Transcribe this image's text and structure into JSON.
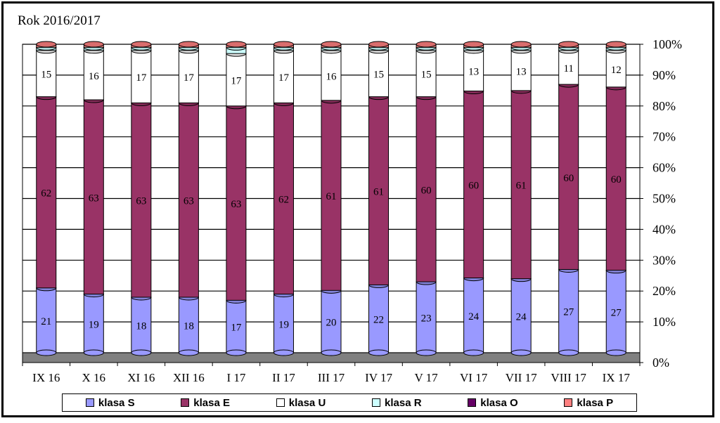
{
  "chart_data": {
    "type": "bar",
    "stacked": true,
    "percent": true,
    "title": "Rok 2016/2017",
    "categories": [
      "IX 16",
      "X 16",
      "XI 16",
      "XII 16",
      "I 17",
      "II 17",
      "III 17",
      "IV 17",
      "V 17",
      "VI 17",
      "VII 17",
      "VIII 17",
      "IX 17"
    ],
    "series": [
      {
        "name": "klasa S",
        "color": "#9999ff",
        "values": [
          21,
          19,
          18,
          18,
          17,
          19,
          20,
          22,
          23,
          24,
          24,
          27,
          27
        ]
      },
      {
        "name": "klasa E",
        "color": "#993366",
        "values": [
          62,
          63,
          63,
          63,
          63,
          62,
          61,
          61,
          60,
          60,
          61,
          60,
          60
        ]
      },
      {
        "name": "klasa U",
        "color": "#ffffff",
        "values": [
          15,
          16,
          17,
          17,
          17,
          17,
          16,
          15,
          15,
          13,
          13,
          11,
          12
        ]
      },
      {
        "name": "klasa R",
        "color": "#ccffff",
        "values": [
          1,
          1,
          1,
          1,
          2,
          1,
          1,
          1,
          1,
          1,
          1,
          1,
          1
        ]
      },
      {
        "name": "klasa O",
        "color": "#660066",
        "values": [
          0,
          0,
          0,
          0,
          0,
          0,
          0,
          0,
          0,
          0,
          0,
          0,
          0
        ]
      },
      {
        "name": "klasa P",
        "color": "#ff8080",
        "values": [
          1,
          1,
          1,
          1,
          1,
          1,
          1,
          1,
          1,
          1,
          1,
          1,
          1
        ]
      }
    ],
    "yticks": [
      "0%",
      "10%",
      "20%",
      "30%",
      "40%",
      "50%",
      "60%",
      "70%",
      "80%",
      "90%",
      "100%"
    ],
    "ylim": [
      0,
      100
    ],
    "grid": true,
    "legend": "bottom"
  }
}
